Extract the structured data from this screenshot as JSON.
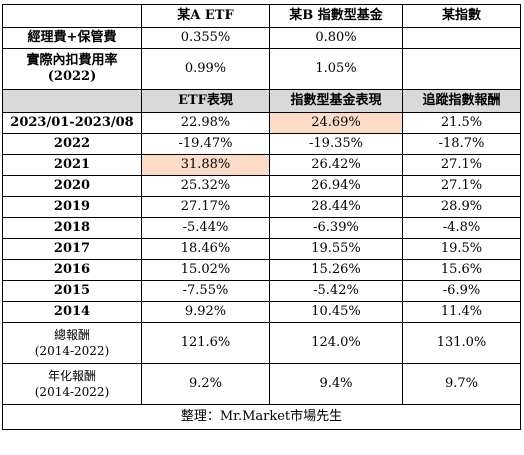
{
  "header": {
    "blank": "",
    "col1": "某A ETF",
    "col2": "某B 指數型基金",
    "col3": "某指數"
  },
  "fee_row": {
    "label": "經理費+保管費",
    "col1": "0.355%",
    "col2": "0.80%",
    "col3": ""
  },
  "actual_fee_row": {
    "label_line1": "實際內扣費用率",
    "label_line2": "(2022)",
    "col1": "0.99%",
    "col2": "1.05%",
    "col3": ""
  },
  "perf_header": {
    "blank": "",
    "col1": "ETF表現",
    "col2": "指數型基金表現",
    "col3": "追蹤指數報酬"
  },
  "rows": [
    {
      "period": "2023/01-2023/08",
      "etf": "22.98%",
      "fund": "24.69%",
      "index": "21.5%"
    },
    {
      "period": "2022",
      "etf": "-19.47%",
      "fund": "-19.35%",
      "index": "-18.7%"
    },
    {
      "period": "2021",
      "etf": "31.88%",
      "fund": "26.42%",
      "index": "27.1%"
    },
    {
      "period": "2020",
      "etf": "25.32%",
      "fund": "26.94%",
      "index": "27.1%"
    },
    {
      "period": "2019",
      "etf": "27.17%",
      "fund": "28.44%",
      "index": "28.9%"
    },
    {
      "period": "2018",
      "etf": "-5.44%",
      "fund": "-6.39%",
      "index": "-4.8%"
    },
    {
      "period": "2017",
      "etf": "18.46%",
      "fund": "19.55%",
      "index": "19.5%"
    },
    {
      "period": "2016",
      "etf": "15.02%",
      "fund": "15.26%",
      "index": "15.6%"
    },
    {
      "period": "2015",
      "etf": "-7.55%",
      "fund": "-5.42%",
      "index": "-6.9%"
    },
    {
      "period": "2014",
      "etf": "9.92%",
      "fund": "10.45%",
      "index": "11.4%"
    }
  ],
  "total_row": {
    "label_line1": "總報酬",
    "label_line2": "(2014-2022)",
    "etf": "121.6%",
    "fund": "124.0%",
    "index": "131.0%"
  },
  "annual_row": {
    "label_line1": "年化報酬",
    "label_line2": "(2014-2022)",
    "etf": "9.2%",
    "fund": "9.4%",
    "index": "9.7%"
  },
  "footer": {
    "text": "整理：Mr.Market市場先生"
  },
  "colors": {
    "header_gray": "#d9d9d9",
    "highlight": "#fbdcc9",
    "border": "#000000"
  }
}
